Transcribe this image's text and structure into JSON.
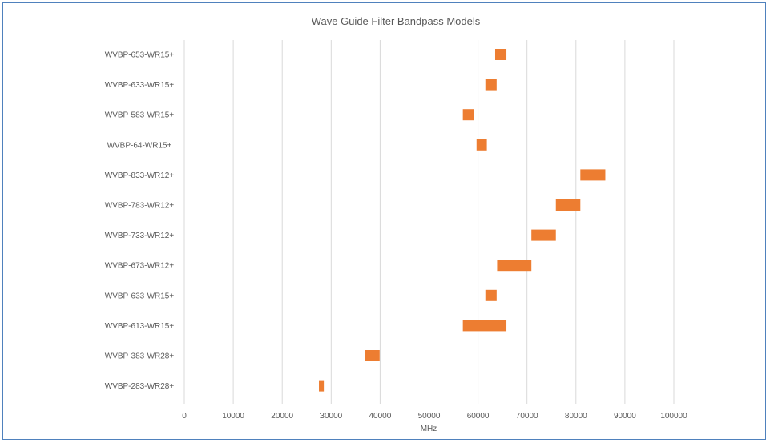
{
  "chart_data": {
    "type": "bar",
    "orientation": "horizontal",
    "style": "floating-range",
    "title": "Wave Guide Filter Bandpass Models",
    "xlabel": "MHz",
    "ylabel": "",
    "xlim": [
      0,
      100000
    ],
    "xticks": [
      "0",
      "10000",
      "20000",
      "30000",
      "40000",
      "50000",
      "60000",
      "70000",
      "80000",
      "90000",
      "100000"
    ],
    "grid": "vertical",
    "legend": "none",
    "bar_color": "#ed7d31",
    "categories": [
      "WVBP-653-WR15+",
      "WVBP-633-WR15+",
      "WVBP-583-WR15+",
      "WVBP-64-WR15+",
      "WVBP-833-WR12+",
      "WVBP-783-WR12+",
      "WVBP-733-WR12+",
      "WVBP-673-WR12+",
      "WVBP-633-WR15+",
      "WVBP-613-WR15+",
      "WVBP-383-WR28+",
      "WVBP-283-WR28+"
    ],
    "ranges": [
      [
        63500,
        65800
      ],
      [
        61500,
        63800
      ],
      [
        56900,
        59100
      ],
      [
        59700,
        61800
      ],
      [
        80900,
        86000
      ],
      [
        75900,
        80900
      ],
      [
        70900,
        75900
      ],
      [
        63900,
        70900
      ],
      [
        61500,
        63800
      ],
      [
        56900,
        65800
      ],
      [
        36900,
        39900
      ],
      [
        27500,
        28500
      ]
    ]
  }
}
